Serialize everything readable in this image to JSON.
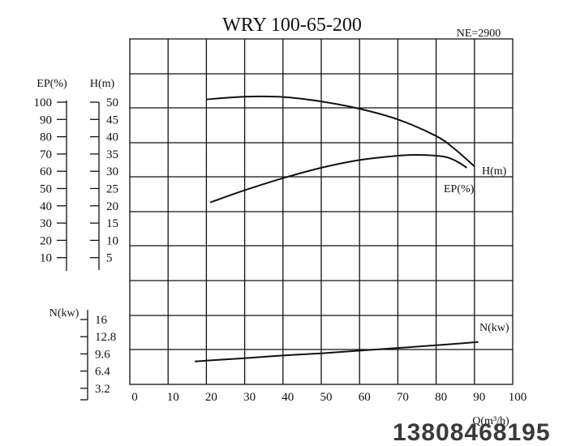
{
  "chart_data": {
    "type": "line",
    "title": "WRY 100-65-200",
    "subtitle": "NE=2900",
    "xlabel": "Q(m³/h)",
    "xlim": [
      0,
      100
    ],
    "x_ticks": [
      "0",
      "10",
      "20",
      "30",
      "40",
      "50",
      "60",
      "70",
      "80",
      "90",
      "100"
    ],
    "grid": true,
    "axes": {
      "ep": {
        "label": "EP(%)",
        "ticks": [
          "100",
          "90",
          "80",
          "70",
          "60",
          "50",
          "40",
          "30",
          "20",
          "10"
        ],
        "range": [
          10,
          100
        ]
      },
      "h": {
        "label": "H(m)",
        "ticks": [
          "50",
          "45",
          "40",
          "35",
          "30",
          "25",
          "20",
          "15",
          "10",
          "5"
        ],
        "range": [
          5,
          50
        ]
      },
      "n": {
        "label": "N(kw)",
        "ticks": [
          "16",
          "12.8",
          "9.6",
          "6.4",
          "3.2"
        ],
        "range": [
          3.2,
          16
        ]
      }
    },
    "series": [
      {
        "name": "H(m)",
        "axis": "h",
        "x": [
          20,
          30,
          40,
          50,
          60,
          70,
          80,
          85,
          90
        ],
        "values": [
          50.8,
          51.6,
          51.5,
          50.2,
          48.1,
          45.0,
          40.2,
          36.3,
          31.4
        ]
      },
      {
        "name": "EP(%)",
        "axis": "ep",
        "x": [
          21,
          30,
          40,
          50,
          60,
          70,
          75,
          80,
          83,
          86,
          88
        ],
        "values": [
          42,
          49,
          56,
          62,
          66.5,
          69,
          69.5,
          69,
          68,
          65,
          62
        ]
      },
      {
        "name": "N(kw)",
        "axis": "n",
        "x": [
          17,
          30,
          40,
          50,
          60,
          70,
          80,
          91
        ],
        "values": [
          8.2,
          8.8,
          9.3,
          9.7,
          10.2,
          10.7,
          11.2,
          11.8
        ]
      }
    ]
  },
  "watermark": "13808468195"
}
